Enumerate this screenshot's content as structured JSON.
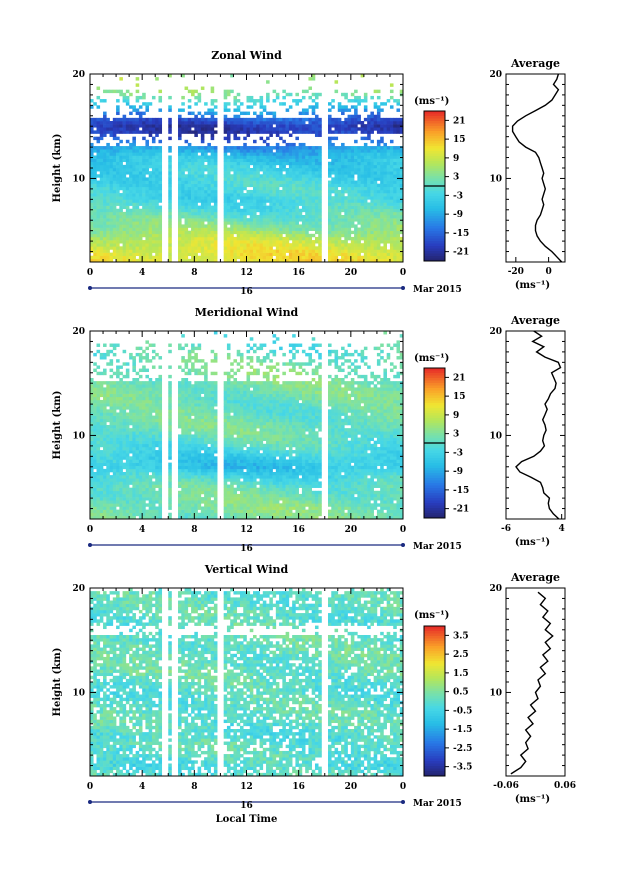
{
  "chart_data": [
    {
      "type": "heatmap",
      "title": "Zonal Wind",
      "xlabel": "",
      "ylabel": "Height (km)",
      "xlim": [
        0,
        24
      ],
      "ylim": [
        2,
        20
      ],
      "xticks": [
        "0",
        "4",
        "8",
        "12",
        "16",
        "20",
        "0"
      ],
      "yticks": [
        "10",
        "20"
      ],
      "date_day": "16",
      "date_label": "Mar 2015",
      "colorbar": {
        "unit": "(ms⁻¹)",
        "ticks": [
          "21",
          "15",
          "9",
          "3",
          "-3",
          "-9",
          "-15",
          "-21"
        ],
        "range": [
          -24,
          24
        ],
        "zero_line": 0
      },
      "data_gaps_hours": [
        [
          5.4,
          5.9
        ],
        [
          6.3,
          6.7
        ],
        [
          9.8,
          10.3
        ],
        [
          17.8,
          18.3
        ]
      ],
      "profile_by_height": [
        {
          "h": 2,
          "v": 12
        },
        {
          "h": 3,
          "v": 11
        },
        {
          "h": 4,
          "v": 9
        },
        {
          "h": 5,
          "v": 5
        },
        {
          "h": 6,
          "v": 2
        },
        {
          "h": 7,
          "v": -1
        },
        {
          "h": 8,
          "v": -3
        },
        {
          "h": 9,
          "v": -2
        },
        {
          "h": 10,
          "v": -3
        },
        {
          "h": 11,
          "v": -4
        },
        {
          "h": 12,
          "v": -6
        },
        {
          "h": 13,
          "v": -11
        },
        {
          "h": 14,
          "v": -19
        },
        {
          "h": 15,
          "v": -20
        },
        {
          "h": 16,
          "v": -14
        },
        {
          "h": 17,
          "v": -5
        },
        {
          "h": 18,
          "v": 3
        },
        {
          "h": 19,
          "v": 5
        },
        {
          "h": 20,
          "v": 6
        }
      ],
      "average": {
        "title": "Average",
        "xlabel": "(ms⁻¹)",
        "xlim": [
          -26,
          10
        ],
        "xticks": [
          "-20",
          "0"
        ],
        "yticks": [
          "10",
          "20"
        ],
        "h": [
          2,
          2.5,
          3,
          3.5,
          4,
          4.5,
          5,
          5.5,
          6,
          6.5,
          7,
          7.5,
          8,
          8.5,
          9,
          9.5,
          10,
          10.5,
          11,
          11.5,
          12,
          12.5,
          13,
          13.5,
          14,
          14.5,
          15,
          15.5,
          16,
          16.5,
          17,
          17.5,
          18,
          18.5,
          19,
          19.5,
          20
        ],
        "values": [
          8,
          5,
          2,
          -2,
          -5,
          -7,
          -8,
          -8,
          -7,
          -5,
          -4,
          -3,
          -4,
          -3,
          -2,
          -3,
          -4,
          -3,
          -4,
          -5,
          -6,
          -8,
          -14,
          -18,
          -20,
          -22,
          -22,
          -19,
          -14,
          -8,
          -2,
          2,
          4,
          6,
          3,
          5,
          6
        ]
      }
    },
    {
      "type": "heatmap",
      "title": "Meridional Wind",
      "xlabel": "",
      "ylabel": "Height (km)",
      "xlim": [
        0,
        24
      ],
      "ylim": [
        2,
        20
      ],
      "xticks": [
        "0",
        "4",
        "8",
        "12",
        "16",
        "20",
        "0"
      ],
      "yticks": [
        "10",
        "20"
      ],
      "date_day": "16",
      "date_label": "Mar 2015",
      "colorbar": {
        "unit": "(ms⁻¹)",
        "ticks": [
          "21",
          "15",
          "9",
          "3",
          "-3",
          "-9",
          "-15",
          "-21"
        ],
        "range": [
          -24,
          24
        ],
        "zero_line": 0
      },
      "data_gaps_hours": [
        [
          5.4,
          5.9
        ],
        [
          6.3,
          6.7
        ],
        [
          9.8,
          10.3
        ],
        [
          17.8,
          18.3
        ]
      ],
      "profile_by_height": [
        {
          "h": 2,
          "v": 2
        },
        {
          "h": 3,
          "v": 3
        },
        {
          "h": 4,
          "v": 2
        },
        {
          "h": 5,
          "v": 1
        },
        {
          "h": 6,
          "v": -2
        },
        {
          "h": 7,
          "v": -6
        },
        {
          "h": 8,
          "v": -4
        },
        {
          "h": 9,
          "v": -1
        },
        {
          "h": 10,
          "v": 1
        },
        {
          "h": 11,
          "v": 2
        },
        {
          "h": 12,
          "v": 1
        },
        {
          "h": 13,
          "v": 1
        },
        {
          "h": 14,
          "v": 2
        },
        {
          "h": 15,
          "v": 2
        },
        {
          "h": 16,
          "v": 3
        },
        {
          "h": 17,
          "v": 2
        },
        {
          "h": 18,
          "v": 0
        },
        {
          "h": 19,
          "v": -1
        },
        {
          "h": 20,
          "v": 0
        }
      ],
      "average": {
        "title": "Average",
        "xlabel": "(ms⁻¹)",
        "xlim": [
          -6,
          4.6
        ],
        "xticks": [
          "-6",
          "4"
        ],
        "yticks": [
          "10",
          "20"
        ],
        "h": [
          2,
          2.5,
          3,
          3.5,
          4,
          4.5,
          5,
          5.5,
          6,
          6.5,
          7,
          7.5,
          8,
          8.5,
          9,
          9.5,
          10,
          10.5,
          11,
          11.5,
          12,
          12.5,
          13,
          13.5,
          14,
          14.5,
          15,
          15.5,
          16,
          16.5,
          17,
          17.5,
          18,
          18.5,
          19,
          19.5,
          20
        ],
        "values": [
          3.5,
          2.5,
          1.8,
          1.6,
          1.8,
          0.8,
          0.6,
          0.2,
          -1.5,
          -3.5,
          -4.2,
          -3.2,
          -1.0,
          0.2,
          0.9,
          0.6,
          0.8,
          1.2,
          1.0,
          0.6,
          1.0,
          1.4,
          1.0,
          1.6,
          2.0,
          2.8,
          3.0,
          2.6,
          2.2,
          3.8,
          3.4,
          1.0,
          -0.5,
          0.8,
          -1.2,
          0.4,
          -1.0
        ]
      }
    },
    {
      "type": "heatmap",
      "title": "Vertical Wind",
      "xlabel": "Local Time",
      "ylabel": "Height (km)",
      "xlim": [
        0,
        24
      ],
      "ylim": [
        2,
        20
      ],
      "xticks": [
        "0",
        "4",
        "8",
        "12",
        "16",
        "20",
        "0"
      ],
      "yticks": [
        "10",
        "20"
      ],
      "date_day": "16",
      "date_label": "Mar 2015",
      "colorbar": {
        "unit": "(ms⁻¹)",
        "ticks": [
          "3.5",
          "2.5",
          "1.5",
          "0.5",
          "-0.5",
          "-1.5",
          "-2.5",
          "-3.5"
        ],
        "range": [
          -4,
          4
        ]
      },
      "data_gaps_hours": [
        [
          5.4,
          5.9
        ],
        [
          6.3,
          6.7
        ],
        [
          9.8,
          10.3
        ],
        [
          17.8,
          18.3
        ]
      ],
      "profile_by_height": [
        {
          "h": 2,
          "v": 0
        },
        {
          "h": 3,
          "v": -0.3
        },
        {
          "h": 4,
          "v": 0
        },
        {
          "h": 5,
          "v": 0.1
        },
        {
          "h": 6,
          "v": -0.2
        },
        {
          "h": 7,
          "v": 0
        },
        {
          "h": 8,
          "v": 0.1
        },
        {
          "h": 9,
          "v": 0
        },
        {
          "h": 10,
          "v": -0.1
        },
        {
          "h": 11,
          "v": 0.1
        },
        {
          "h": 12,
          "v": 0.2
        },
        {
          "h": 13,
          "v": 0.1
        },
        {
          "h": 14,
          "v": 0.2
        },
        {
          "h": 15,
          "v": 0.1
        },
        {
          "h": 16,
          "v": 0.2
        },
        {
          "h": 17,
          "v": 0
        },
        {
          "h": 18,
          "v": 0.1
        },
        {
          "h": 19,
          "v": 0
        },
        {
          "h": 20,
          "v": 0
        }
      ],
      "average": {
        "title": "Average",
        "xlabel": "(ms⁻¹)",
        "xlim": [
          -0.06,
          0.06
        ],
        "xticks": [
          "-0.06",
          "0.06"
        ],
        "yticks": [
          "10",
          "20"
        ],
        "h": [
          2.2,
          2.8,
          3.4,
          4.0,
          4.6,
          5.2,
          5.8,
          6.4,
          7.0,
          7.6,
          8.2,
          8.8,
          9.4,
          10.0,
          10.6,
          11.2,
          11.8,
          12.4,
          13.0,
          13.6,
          14.2,
          14.8,
          15.4,
          16.0,
          16.6,
          17.2,
          17.8,
          18.4,
          19.0,
          19.6
        ],
        "values": [
          -0.05,
          -0.03,
          -0.02,
          -0.03,
          -0.015,
          -0.02,
          -0.01,
          -0.02,
          -0.005,
          -0.015,
          0.0,
          -0.01,
          0.005,
          0.0,
          0.01,
          0.005,
          0.02,
          0.01,
          0.025,
          0.015,
          0.03,
          0.02,
          0.035,
          0.02,
          0.03,
          0.015,
          0.025,
          0.01,
          0.02,
          0.005
        ]
      }
    }
  ]
}
